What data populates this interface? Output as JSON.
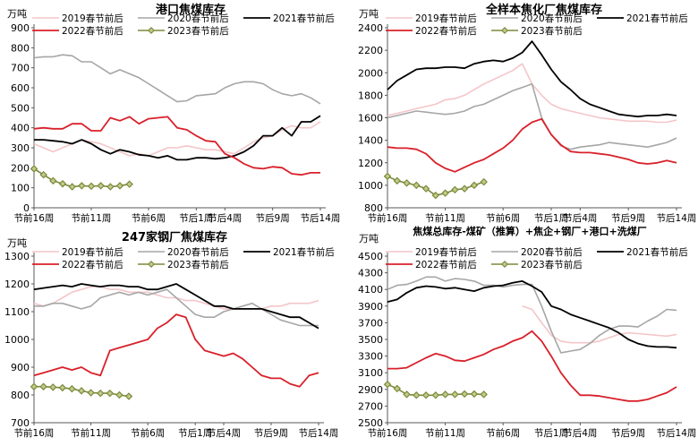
{
  "x_ticks": [
    "节前16周",
    "节前11周",
    "节前6周",
    "节后1周",
    "节后4周",
    "节后9周",
    "节后14周"
  ],
  "legend_labels": [
    "2019春节前后",
    "2020春节前后",
    "2021春节前后",
    "2022春节前后",
    "2023春节前后"
  ],
  "colors": {
    "s2019": "#f4c6c9",
    "s2020": "#a6a6a6",
    "s2021": "#000000",
    "s2022": "#d9202a",
    "s2023": "#7a8a3c",
    "axis": "#595959"
  },
  "chart_data": [
    {
      "type": "line",
      "title": "港口焦煤库存",
      "unit": "万吨",
      "ylim": [
        0,
        900
      ],
      "yticks": [
        0,
        100,
        200,
        300,
        400,
        500,
        600,
        700,
        800,
        900
      ],
      "x_count": 31,
      "series": [
        {
          "name": "2019春节前后",
          "values": [
            320,
            300,
            280,
            300,
            320,
            340,
            330,
            320,
            300,
            280,
            260,
            270,
            260,
            280,
            300,
            300,
            310,
            300,
            290,
            290,
            280,
            270,
            300,
            330,
            350,
            360,
            390,
            410,
            400,
            400,
            430
          ]
        },
        {
          "name": "2020春节前后",
          "values": [
            750,
            755,
            755,
            765,
            760,
            730,
            730,
            700,
            670,
            690,
            670,
            650,
            620,
            590,
            560,
            530,
            535,
            560,
            565,
            570,
            600,
            620,
            630,
            630,
            620,
            590,
            570,
            560,
            570,
            550,
            520
          ]
        },
        {
          "name": "2021春节前后",
          "values": [
            340,
            340,
            335,
            330,
            320,
            340,
            320,
            290,
            270,
            290,
            280,
            265,
            260,
            250,
            260,
            240,
            240,
            250,
            250,
            245,
            250,
            260,
            280,
            310,
            360,
            360,
            400,
            360,
            430,
            430,
            460
          ]
        },
        {
          "name": "2022春节前后",
          "values": [
            395,
            400,
            395,
            395,
            420,
            420,
            385,
            385,
            450,
            435,
            455,
            420,
            445,
            450,
            455,
            400,
            390,
            360,
            335,
            330,
            270,
            250,
            220,
            200,
            195,
            205,
            200,
            170,
            165,
            175,
            175
          ]
        },
        {
          "name": "2023春节前后",
          "values": [
            195,
            165,
            135,
            120,
            105,
            110,
            108,
            110,
            105,
            110,
            118
          ]
        }
      ]
    },
    {
      "type": "line",
      "title": "全样本焦化厂焦煤库存",
      "unit": "万吨",
      "ylim": [
        800,
        2400
      ],
      "yticks": [
        800,
        1000,
        1200,
        1400,
        1600,
        1800,
        2000,
        2200,
        2400
      ],
      "x_count": 31,
      "series": [
        {
          "name": "2019春节前后",
          "values": [
            1620,
            1640,
            1660,
            1680,
            1700,
            1720,
            1760,
            1770,
            1800,
            1850,
            1900,
            1940,
            1980,
            2020,
            2080,
            1900,
            1800,
            1720,
            1680,
            1660,
            1640,
            1620,
            1600,
            1590,
            1580,
            1570,
            1570,
            1570,
            1560,
            1560,
            1580
          ]
        },
        {
          "name": "2020春节前后",
          "values": [
            1600,
            1620,
            1640,
            1660,
            1650,
            1640,
            1630,
            1640,
            1660,
            1700,
            1720,
            1760,
            1800,
            1840,
            1870,
            1900,
            1600,
            1450,
            1350,
            1320,
            1340,
            1350,
            1360,
            1380,
            1370,
            1360,
            1350,
            1340,
            1360,
            1380,
            1420
          ]
        },
        {
          "name": "2021春节前后",
          "values": [
            1850,
            1930,
            1980,
            2030,
            2040,
            2040,
            2050,
            2050,
            2040,
            2080,
            2100,
            2110,
            2100,
            2130,
            2180,
            2280,
            2160,
            2030,
            1920,
            1850,
            1770,
            1720,
            1690,
            1660,
            1630,
            1620,
            1610,
            1620,
            1620,
            1630,
            1620
          ]
        },
        {
          "name": "2022春节前后",
          "values": [
            1340,
            1330,
            1330,
            1320,
            1280,
            1200,
            1150,
            1120,
            1160,
            1200,
            1230,
            1280,
            1330,
            1400,
            1500,
            1560,
            1590,
            1450,
            1360,
            1300,
            1290,
            1290,
            1280,
            1270,
            1250,
            1230,
            1200,
            1190,
            1200,
            1220,
            1200
          ]
        },
        {
          "name": "2023春节前后",
          "values": [
            1080,
            1040,
            1020,
            1000,
            970,
            910,
            930,
            960,
            970,
            1000,
            1030
          ]
        }
      ]
    },
    {
      "type": "line",
      "title": "247家钢厂焦煤库存",
      "unit": "万吨",
      "ylim": [
        700,
        1300
      ],
      "yticks": [
        700,
        800,
        900,
        1000,
        1100,
        1200,
        1300
      ],
      "x_count": 31,
      "series": [
        {
          "name": "2019春节前后",
          "values": [
            1130,
            1120,
            1130,
            1150,
            1170,
            1180,
            1190,
            1190,
            1180,
            1180,
            1170,
            1170,
            1170,
            1160,
            1150,
            1150,
            1140,
            1140,
            1130,
            1120,
            1110,
            1110,
            1110,
            1110,
            1110,
            1120,
            1120,
            1130,
            1130,
            1130,
            1140
          ]
        },
        {
          "name": "2020春节前后",
          "values": [
            1120,
            1120,
            1130,
            1130,
            1120,
            1110,
            1120,
            1150,
            1160,
            1170,
            1160,
            1170,
            1160,
            1170,
            1180,
            1150,
            1120,
            1090,
            1080,
            1080,
            1100,
            1110,
            1120,
            1130,
            1110,
            1090,
            1070,
            1060,
            1050,
            1050,
            1050
          ]
        },
        {
          "name": "2021春节前后",
          "values": [
            1180,
            1185,
            1190,
            1195,
            1190,
            1200,
            1195,
            1190,
            1195,
            1195,
            1190,
            1190,
            1180,
            1180,
            1190,
            1200,
            1180,
            1160,
            1140,
            1120,
            1120,
            1110,
            1110,
            1110,
            1110,
            1100,
            1090,
            1080,
            1080,
            1060,
            1040
          ]
        },
        {
          "name": "2022春节前后",
          "values": [
            870,
            880,
            890,
            900,
            890,
            900,
            880,
            870,
            960,
            970,
            980,
            990,
            1000,
            1040,
            1060,
            1090,
            1080,
            1000,
            960,
            950,
            940,
            950,
            930,
            900,
            870,
            860,
            860,
            840,
            830,
            870,
            880
          ]
        },
        {
          "name": "2023春节前后",
          "values": [
            830,
            830,
            828,
            826,
            822,
            815,
            808,
            806,
            806,
            800,
            795
          ]
        }
      ]
    },
    {
      "type": "line",
      "title": "焦煤总库存-煤矿（推算）+焦企+钢厂+港口+洗煤厂",
      "unit": "万吨",
      "ylim": [
        2500,
        4500
      ],
      "yticks": [
        2500,
        2700,
        2900,
        3100,
        3300,
        3500,
        3700,
        3900,
        4100,
        4300,
        4500
      ],
      "x_count": 31,
      "series": [
        {
          "name": "2019春节前后",
          "values": [
            null,
            null,
            null,
            null,
            null,
            null,
            null,
            null,
            null,
            null,
            null,
            null,
            null,
            null,
            3900,
            3860,
            3700,
            3550,
            3480,
            3460,
            3460,
            3460,
            3480,
            3520,
            3560,
            3580,
            3570,
            3560,
            3550,
            3540,
            3560
          ]
        },
        {
          "name": "2020春节前后",
          "values": [
            4100,
            4150,
            4160,
            4200,
            4250,
            4250,
            4200,
            4230,
            4220,
            4200,
            4150,
            4150,
            4130,
            4150,
            4160,
            4160,
            3900,
            3600,
            3340,
            3360,
            3380,
            3450,
            3550,
            3620,
            3660,
            3660,
            3650,
            3720,
            3780,
            3860,
            3850
          ]
        },
        {
          "name": "2021春节前后",
          "values": [
            3950,
            3980,
            4060,
            4120,
            4140,
            4130,
            4110,
            4120,
            4100,
            4080,
            4120,
            4140,
            4150,
            4180,
            4200,
            4140,
            4070,
            3900,
            3860,
            3800,
            3760,
            3720,
            3680,
            3640,
            3580,
            3500,
            3450,
            3420,
            3410,
            3410,
            3400
          ]
        },
        {
          "name": "2022春节前后",
          "values": [
            3150,
            3150,
            3160,
            3220,
            3280,
            3330,
            3300,
            3250,
            3240,
            3280,
            3320,
            3380,
            3420,
            3480,
            3520,
            3600,
            3480,
            3300,
            3100,
            2950,
            2830,
            2830,
            2820,
            2800,
            2780,
            2760,
            2760,
            2780,
            2820,
            2860,
            2930
          ]
        },
        {
          "name": "2023春节前后",
          "values": [
            2960,
            2910,
            2840,
            2830,
            2830,
            2830,
            2840,
            2840,
            2845,
            2845,
            2840
          ]
        }
      ]
    }
  ]
}
